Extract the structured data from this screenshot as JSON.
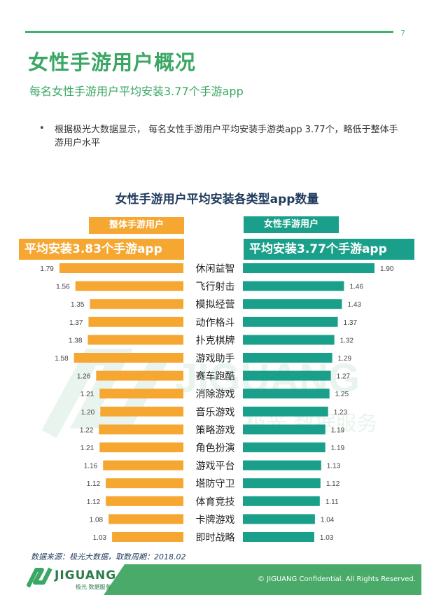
{
  "header": {
    "page_number": "7"
  },
  "title": "女性手游用户概况",
  "subtitle": "每名女性手游用户平均安装3.77个手游app",
  "bullet": {
    "symbol": "•",
    "text": "根据极光大数据显示， 每名女性手游用户平均安装手游类app 3.77个，略低于整体手游用户水平"
  },
  "labels": {
    "left_group": "整体手游用户",
    "right_group": "女性手游用户",
    "left_avg": "平均安装3.83个手游app",
    "right_avg": "平均安装3.77个手游app"
  },
  "watermark": {
    "brand": "JIGUANG",
    "sub": "极光 数据服务"
  },
  "source": "数据来源：极光大数据，取数周期：2018.02",
  "footer": {
    "copyright": "© JIGUANG Confidential. All Rights Reserved.",
    "logo_text": "JIGUANG",
    "logo_sub": "极光 数据服务"
  },
  "colors": {
    "overall": "#f5a731",
    "female": "#1aa08a",
    "title_green": "#3aa764",
    "chart_title": "#1f3b5c"
  },
  "chart_data": {
    "type": "bar",
    "orientation": "horizontal-butterfly",
    "title": "女性手游用户平均安装各类型app数量",
    "categories": [
      "休闲益智",
      "飞行射击",
      "模拟经营",
      "动作格斗",
      "扑克棋牌",
      "游戏助手",
      "赛车跑酷",
      "消除游戏",
      "音乐游戏",
      "策略游戏",
      "角色扮演",
      "游戏平台",
      "塔防守卫",
      "体育竞技",
      "卡牌游戏",
      "即时战略"
    ],
    "series": [
      {
        "name": "整体手游用户",
        "color": "#f5a731",
        "values": [
          1.79,
          1.56,
          1.35,
          1.37,
          1.38,
          1.58,
          1.26,
          1.21,
          1.2,
          1.22,
          1.21,
          1.16,
          1.12,
          1.12,
          1.08,
          1.03
        ]
      },
      {
        "name": "女性手游用户",
        "color": "#1aa08a",
        "values": [
          1.9,
          1.46,
          1.43,
          1.37,
          1.32,
          1.29,
          1.27,
          1.25,
          1.23,
          1.19,
          1.19,
          1.13,
          1.12,
          1.11,
          1.04,
          1.03
        ]
      }
    ],
    "xlim": [
      0,
      1.9
    ],
    "grid": false
  }
}
